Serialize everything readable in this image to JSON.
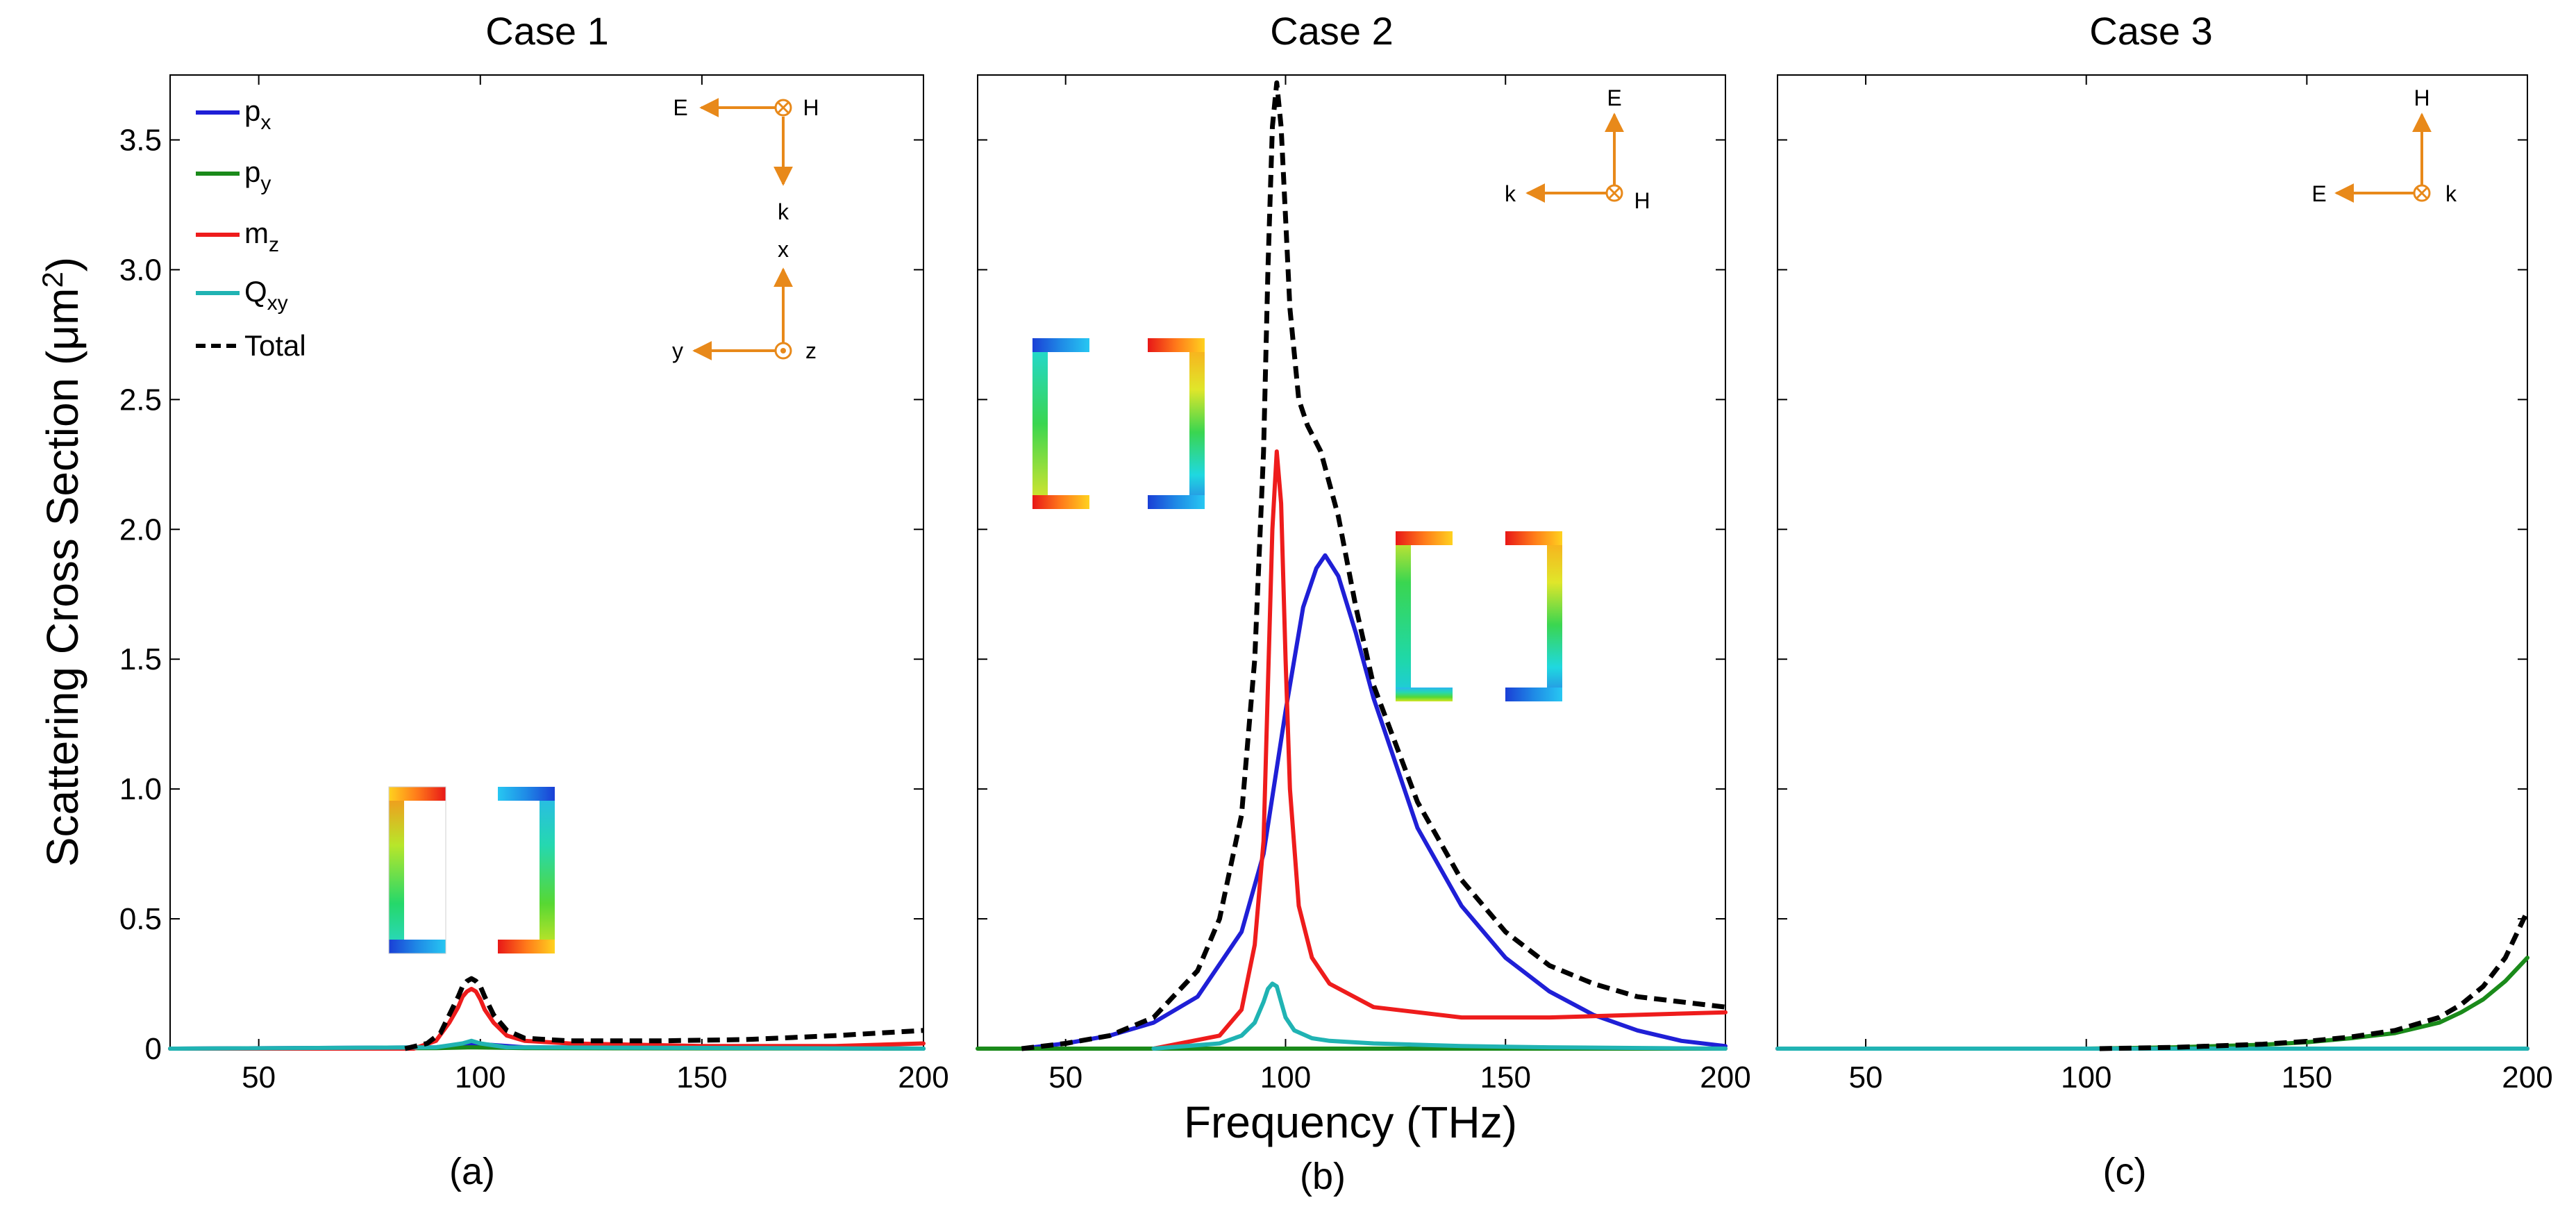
{
  "chart_data": [
    {
      "type": "line",
      "panel": "a",
      "title": "Case 1",
      "caption": "(a)",
      "xlabel": "",
      "ylabel": "Scattering Cross Section (μm²)",
      "xlim": [
        30,
        200
      ],
      "ylim": [
        0,
        3.75
      ],
      "x_ticks": [
        50,
        100,
        150,
        200
      ],
      "y_ticks": [
        0,
        0.5,
        1.0,
        1.5,
        2.0,
        2.5,
        3.0,
        3.5
      ],
      "x_tick_labels": [
        "50",
        "100",
        "150",
        "200"
      ],
      "y_tick_labels": [
        "0",
        "0.5",
        "1.0",
        "1.5",
        "2.0",
        "2.5",
        "3.0",
        "3.5"
      ],
      "legend": {
        "position": "top-left",
        "entries": [
          {
            "series": "px",
            "label": "p",
            "sub": "x"
          },
          {
            "series": "py",
            "label": "p",
            "sub": "y"
          },
          {
            "series": "mz",
            "label": "m",
            "sub": "z"
          },
          {
            "series": "qxy",
            "label": "Q",
            "sub": "xy"
          },
          {
            "series": "total",
            "label": "Total",
            "sub": ""
          }
        ]
      },
      "compass": {
        "top": {
          "e": "E",
          "h": "H",
          "k": "k"
        },
        "bottom": {
          "x": "x",
          "y": "y",
          "z": "z"
        }
      },
      "series": [
        {
          "name": "px",
          "color": "#1f1fd6",
          "dashed": false,
          "x": [
            30,
            90,
            95,
            98,
            102,
            110,
            200
          ],
          "y": [
            0,
            0.005,
            0.015,
            0.02,
            0.015,
            0.005,
            0.0
          ]
        },
        {
          "name": "py",
          "color": "#1a8a1a",
          "dashed": false,
          "x": [
            30,
            90,
            98,
            110,
            200
          ],
          "y": [
            0,
            0.002,
            0.005,
            0.002,
            0.0
          ]
        },
        {
          "name": "mz",
          "color": "#ee1c1c",
          "dashed": false,
          "x": [
            30,
            85,
            90,
            93,
            95,
            96,
            97,
            98,
            99,
            100,
            101,
            103,
            106,
            110,
            120,
            150,
            180,
            200
          ],
          "y": [
            0,
            0.0,
            0.03,
            0.1,
            0.16,
            0.2,
            0.22,
            0.23,
            0.22,
            0.19,
            0.15,
            0.1,
            0.05,
            0.03,
            0.02,
            0.01,
            0.01,
            0.02
          ]
        },
        {
          "name": "qxy",
          "color": "#20b3b3",
          "dashed": false,
          "x": [
            30,
            90,
            96,
            98,
            100,
            106,
            200
          ],
          "y": [
            0,
            0.005,
            0.02,
            0.03,
            0.02,
            0.005,
            0.0
          ]
        },
        {
          "name": "total",
          "color": "#000000",
          "dashed": true,
          "x": [
            83,
            88,
            91,
            93,
            95,
            96,
            97,
            98,
            99,
            100,
            101,
            103,
            106,
            110,
            120,
            140,
            160,
            180,
            200
          ],
          "y": [
            0,
            0.02,
            0.06,
            0.13,
            0.2,
            0.24,
            0.26,
            0.27,
            0.26,
            0.24,
            0.2,
            0.13,
            0.07,
            0.04,
            0.03,
            0.03,
            0.035,
            0.05,
            0.07
          ]
        }
      ]
    },
    {
      "type": "line",
      "panel": "b",
      "title": "Case 2",
      "caption": "(b)",
      "xlabel": "Frequency (THz)",
      "ylabel": "",
      "xlim": [
        30,
        200
      ],
      "ylim": [
        0,
        3.75
      ],
      "x_ticks": [
        50,
        100,
        150,
        200
      ],
      "y_ticks": [
        0,
        0.5,
        1.0,
        1.5,
        2.0,
        2.5,
        3.0,
        3.5
      ],
      "x_tick_labels": [
        "50",
        "100",
        "150",
        "200"
      ],
      "compass": {
        "e": "E",
        "h": "H",
        "k": "k"
      },
      "series": [
        {
          "name": "px",
          "color": "#1f1fd6",
          "dashed": false,
          "x": [
            40,
            50,
            60,
            70,
            80,
            90,
            95,
            100,
            104,
            107,
            109,
            112,
            116,
            120,
            130,
            140,
            150,
            160,
            170,
            180,
            190,
            200
          ],
          "y": [
            0,
            0.02,
            0.05,
            0.1,
            0.2,
            0.45,
            0.75,
            1.3,
            1.7,
            1.85,
            1.9,
            1.82,
            1.6,
            1.35,
            0.85,
            0.55,
            0.35,
            0.22,
            0.13,
            0.07,
            0.03,
            0.01
          ]
        },
        {
          "name": "py",
          "color": "#1a8a1a",
          "dashed": false,
          "x": [
            30,
            200
          ],
          "y": [
            0,
            0
          ]
        },
        {
          "name": "mz",
          "color": "#ee1c1c",
          "dashed": false,
          "x": [
            70,
            85,
            90,
            93,
            95,
            96,
            97,
            98,
            99,
            100,
            101,
            103,
            106,
            110,
            120,
            140,
            160,
            180,
            200
          ],
          "y": [
            0,
            0.05,
            0.15,
            0.4,
            0.8,
            1.4,
            2.0,
            2.3,
            2.1,
            1.5,
            1.0,
            0.55,
            0.35,
            0.25,
            0.16,
            0.12,
            0.12,
            0.13,
            0.14
          ]
        },
        {
          "name": "qxy",
          "color": "#20b3b3",
          "dashed": false,
          "x": [
            70,
            85,
            90,
            93,
            95,
            96,
            97,
            98,
            99,
            100,
            102,
            106,
            110,
            120,
            140,
            160,
            200
          ],
          "y": [
            0,
            0.02,
            0.05,
            0.1,
            0.18,
            0.23,
            0.25,
            0.24,
            0.18,
            0.12,
            0.07,
            0.04,
            0.03,
            0.02,
            0.01,
            0.005,
            0.0
          ]
        },
        {
          "name": "total",
          "color": "#000000",
          "dashed": true,
          "x": [
            40,
            50,
            60,
            70,
            80,
            85,
            90,
            93,
            95,
            96,
            97,
            98,
            99,
            100,
            101,
            103,
            105,
            108,
            112,
            116,
            120,
            130,
            140,
            150,
            160,
            170,
            180,
            200
          ],
          "y": [
            0,
            0.02,
            0.05,
            0.12,
            0.3,
            0.5,
            0.9,
            1.5,
            2.3,
            3.0,
            3.55,
            3.72,
            3.55,
            3.2,
            2.85,
            2.5,
            2.4,
            2.3,
            2.05,
            1.7,
            1.4,
            0.95,
            0.65,
            0.45,
            0.32,
            0.25,
            0.2,
            0.16
          ]
        }
      ]
    },
    {
      "type": "line",
      "panel": "c",
      "title": "Case 3",
      "caption": "(c)",
      "xlabel": "",
      "ylabel": "",
      "xlim": [
        30,
        200
      ],
      "ylim": [
        0,
        3.75
      ],
      "x_ticks": [
        50,
        100,
        150,
        200
      ],
      "y_ticks": [
        0,
        0.5,
        1.0,
        1.5,
        2.0,
        2.5,
        3.0,
        3.5
      ],
      "x_tick_labels": [
        "50",
        "100",
        "150",
        "200"
      ],
      "compass": {
        "e": "E",
        "h": "H",
        "k": "k"
      },
      "series": [
        {
          "name": "px",
          "color": "#1f1fd6",
          "dashed": false,
          "x": [
            30,
            200
          ],
          "y": [
            0,
            0
          ]
        },
        {
          "name": "py",
          "color": "#1a8a1a",
          "dashed": false,
          "x": [
            100,
            120,
            140,
            150,
            160,
            170,
            180,
            185,
            190,
            195,
            200
          ],
          "y": [
            0,
            0.005,
            0.015,
            0.025,
            0.04,
            0.06,
            0.1,
            0.14,
            0.19,
            0.26,
            0.35
          ]
        },
        {
          "name": "mz",
          "color": "#ee1c1c",
          "dashed": false,
          "x": [
            30,
            200
          ],
          "y": [
            0,
            0
          ]
        },
        {
          "name": "qxy",
          "color": "#20b3b3",
          "dashed": false,
          "x": [
            30,
            200
          ],
          "y": [
            0,
            0
          ]
        },
        {
          "name": "total",
          "color": "#000000",
          "dashed": true,
          "x": [
            103,
            120,
            140,
            150,
            160,
            170,
            180,
            185,
            190,
            195,
            200
          ],
          "y": [
            0,
            0.005,
            0.017,
            0.028,
            0.045,
            0.07,
            0.12,
            0.17,
            0.24,
            0.35,
            0.53
          ]
        }
      ]
    }
  ]
}
